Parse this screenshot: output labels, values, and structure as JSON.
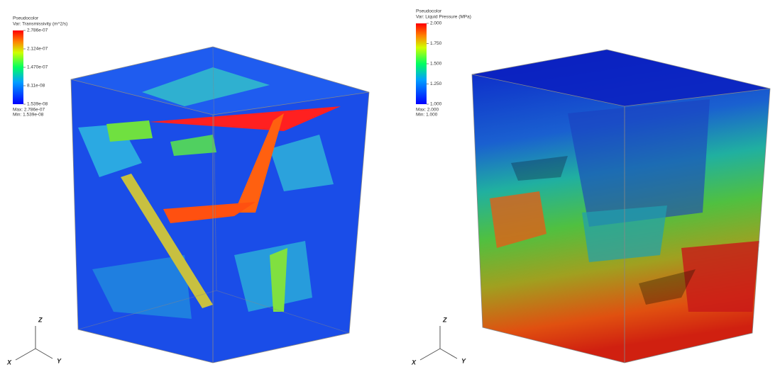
{
  "panels": [
    {
      "legend": {
        "title": "Pseudocolor",
        "variable": "Var: Transmissivity (m^2/s)",
        "ticks": [
          "2.786e-07",
          "2.124e-07",
          "1.470e-07",
          "8.11e-08",
          "1.539e-08"
        ],
        "max": "Max: 2.786e-07",
        "min": "Min: 1.539e-08"
      },
      "axes": {
        "z": "Z",
        "x": "X",
        "y": "Y"
      }
    },
    {
      "legend": {
        "title": "Pseudocolor",
        "variable": "Var: Liquid Pressure (MPa)",
        "ticks": [
          "2.000",
          "1.750",
          "1.500",
          "1.250",
          "1.000"
        ],
        "max": "Max: 2.000",
        "min": "Min: 1.000"
      },
      "axes": {
        "z": "Z",
        "x": "X",
        "y": "Y"
      }
    }
  ]
}
